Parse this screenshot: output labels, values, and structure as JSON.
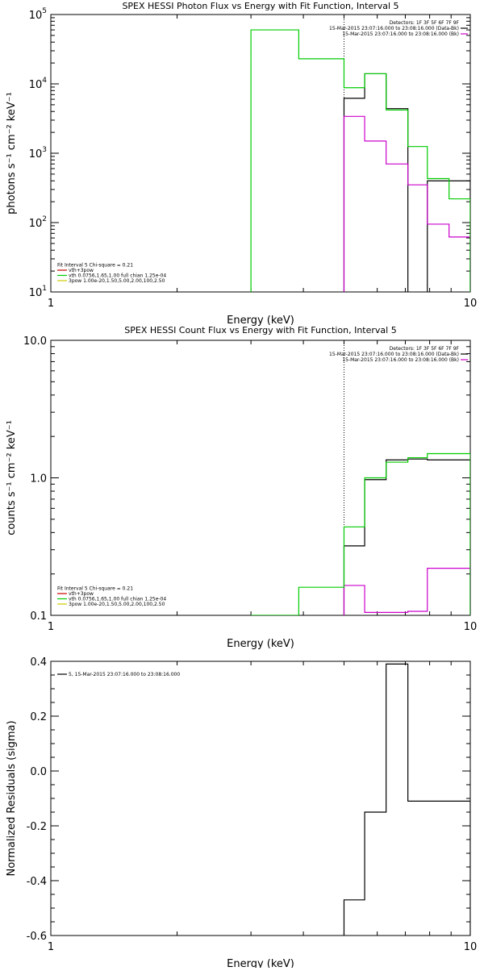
{
  "chart_data": [
    {
      "type": "line",
      "title": "SPEX HESSI Photon Flux vs Energy with Fit Function, Interval 5",
      "xlabel": "Energy (keV)",
      "ylabel": "photons s⁻¹ cm⁻² keV⁻¹",
      "xscale": "log",
      "yscale": "log",
      "xlim": [
        1,
        10
      ],
      "ylim": [
        10,
        100000
      ],
      "x_ticks": [
        {
          "v": 1,
          "label": "1"
        },
        {
          "v": 10,
          "label": "10"
        }
      ],
      "y_ticks": [
        {
          "v": 10,
          "base": "10",
          "exp": "1"
        },
        {
          "v": 100,
          "base": "10",
          "exp": "2"
        },
        {
          "v": 1000,
          "base": "10",
          "exp": "3"
        },
        {
          "v": 10000,
          "base": "10",
          "exp": "4"
        },
        {
          "v": 100000,
          "base": "10",
          "exp": "5"
        }
      ],
      "vline": 5,
      "legend_right": {
        "position": "top-right",
        "lines": [
          {
            "text": "Detectors: 1F 3F 5F 6F 7F 9F",
            "color": null
          },
          {
            "text": "15-Mar-2015 23:07:16.000 to 23:08:16.000 (Data-Bk)",
            "color": "#000000"
          },
          {
            "text": "15-Mar-2015 23:07:16.000 to 23:08:16.000 (Bk)",
            "color": "#cc00cc"
          }
        ]
      },
      "legend_left": {
        "position": "bottom-left",
        "lines": [
          {
            "text": "Fit Interval 5   Chi-square = 0.21",
            "color": null
          },
          {
            "text": "vth+3pow",
            "color": "#cc0000"
          },
          {
            "text": "vth 0.0756,1.65,1.00  full chian 1.25e-04",
            "color": "#00cc00"
          },
          {
            "text": "3pow 1.00e-20,1.50,5.00,2.00,100,2.50",
            "color": "#cccc00"
          }
        ]
      },
      "series": [
        {
          "color": "#000000",
          "edges": [
            5.0,
            5.6,
            6.3,
            7.1,
            7.9,
            8.9,
            10.0
          ],
          "values": [
            6200,
            14000,
            4400,
            null,
            400,
            400
          ]
        },
        {
          "color": "#cc00cc",
          "edges": [
            5.0,
            5.6,
            6.3,
            7.1,
            7.9,
            8.9,
            10.0
          ],
          "values": [
            3400,
            1500,
            700,
            350,
            95,
            62
          ]
        },
        {
          "color": "#00cc00",
          "edges": [
            3.0,
            3.9,
            5.0,
            5.6,
            6.3,
            7.1,
            7.9,
            8.9,
            10.0
          ],
          "values": [
            60000,
            23000,
            8800,
            14000,
            4200,
            1250,
            430,
            220
          ]
        }
      ]
    },
    {
      "type": "line",
      "title": "SPEX HESSI Count Flux vs Energy with Fit Function, Interval 5",
      "xlabel": "Energy (keV)",
      "ylabel": "counts s⁻¹ cm⁻² keV⁻¹",
      "xscale": "log",
      "yscale": "log",
      "xlim": [
        1,
        10
      ],
      "ylim": [
        0.1,
        10
      ],
      "x_ticks": [
        {
          "v": 1,
          "label": "1"
        },
        {
          "v": 10,
          "label": "10"
        }
      ],
      "y_ticks": [
        {
          "v": 0.1,
          "label": "0.1"
        },
        {
          "v": 1,
          "label": "1.0"
        },
        {
          "v": 10,
          "label": "10.0"
        }
      ],
      "vline": 5,
      "legend_right": {
        "position": "top-right",
        "lines": [
          {
            "text": "Detectors: 1F 3F 5F 6F 7F 9F",
            "color": null
          },
          {
            "text": "15-Mar-2015 23:07:16.000 to 23:08:16.000 (Data-Bk)",
            "color": "#000000"
          },
          {
            "text": "15-Mar-2015 23:07:16.000 to 23:08:16.000 (Bk)",
            "color": "#cc00cc"
          }
        ]
      },
      "legend_left": {
        "position": "bottom-left",
        "lines": [
          {
            "text": "Fit Interval 5   Chi-square = 0.21",
            "color": null
          },
          {
            "text": "vth+3pow",
            "color": "#cc0000"
          },
          {
            "text": "vth 0.0756,1.65,1.00  full chian 1.25e-04",
            "color": "#00cc00"
          },
          {
            "text": "3pow 1.00e-20,1.50,5.00,2.00,100,2.50",
            "color": "#cccc00"
          }
        ]
      },
      "series": [
        {
          "color": "#000000",
          "edges": [
            5.0,
            5.6,
            6.3,
            7.1,
            7.9,
            8.9,
            10.0
          ],
          "values": [
            0.32,
            0.97,
            1.35,
            1.37,
            1.35,
            1.35
          ]
        },
        {
          "color": "#cc00cc",
          "edges": [
            5.0,
            5.6,
            6.3,
            7.1,
            7.9,
            8.9,
            10.0
          ],
          "values": [
            0.165,
            0.105,
            0.105,
            0.107,
            0.22,
            0.22
          ]
        },
        {
          "color": "#00cc00",
          "edges": [
            3.0,
            3.9,
            5.0,
            5.6,
            6.3,
            7.1,
            7.9,
            8.9,
            10.0
          ],
          "values": [
            0.1,
            0.16,
            0.44,
            1.0,
            1.3,
            1.4,
            1.5,
            1.5
          ]
        }
      ]
    },
    {
      "type": "line",
      "title": "",
      "xlabel": "Energy (keV)",
      "ylabel": "Normalized Residuals (sigma)",
      "xscale": "log",
      "yscale": "linear",
      "xlim": [
        1,
        10
      ],
      "ylim": [
        -0.6,
        0.4
      ],
      "x_ticks": [
        {
          "v": 1,
          "label": "1"
        },
        {
          "v": 10,
          "label": "10"
        }
      ],
      "y_ticks": [
        {
          "v": 0.4,
          "label": "0.4"
        },
        {
          "v": 0.2,
          "label": "0.2"
        },
        {
          "v": 0.0,
          "label": "0.0"
        },
        {
          "v": -0.2,
          "label": "-0.2"
        },
        {
          "v": -0.4,
          "label": "-0.4"
        },
        {
          "v": -0.6,
          "label": "-0.6"
        }
      ],
      "legend_left": {
        "position": "top-left",
        "lines": [
          {
            "text": "5, 15-Mar-2015 23:07:16.000 to 23:08:16.000",
            "color": "#000000"
          }
        ]
      },
      "series": [
        {
          "color": "#000000",
          "edges": [
            5.0,
            5.6,
            6.3,
            7.1,
            7.9,
            8.9,
            10.0
          ],
          "values": [
            -0.47,
            -0.15,
            0.39,
            -0.11,
            -0.11,
            -0.11
          ]
        }
      ]
    }
  ]
}
